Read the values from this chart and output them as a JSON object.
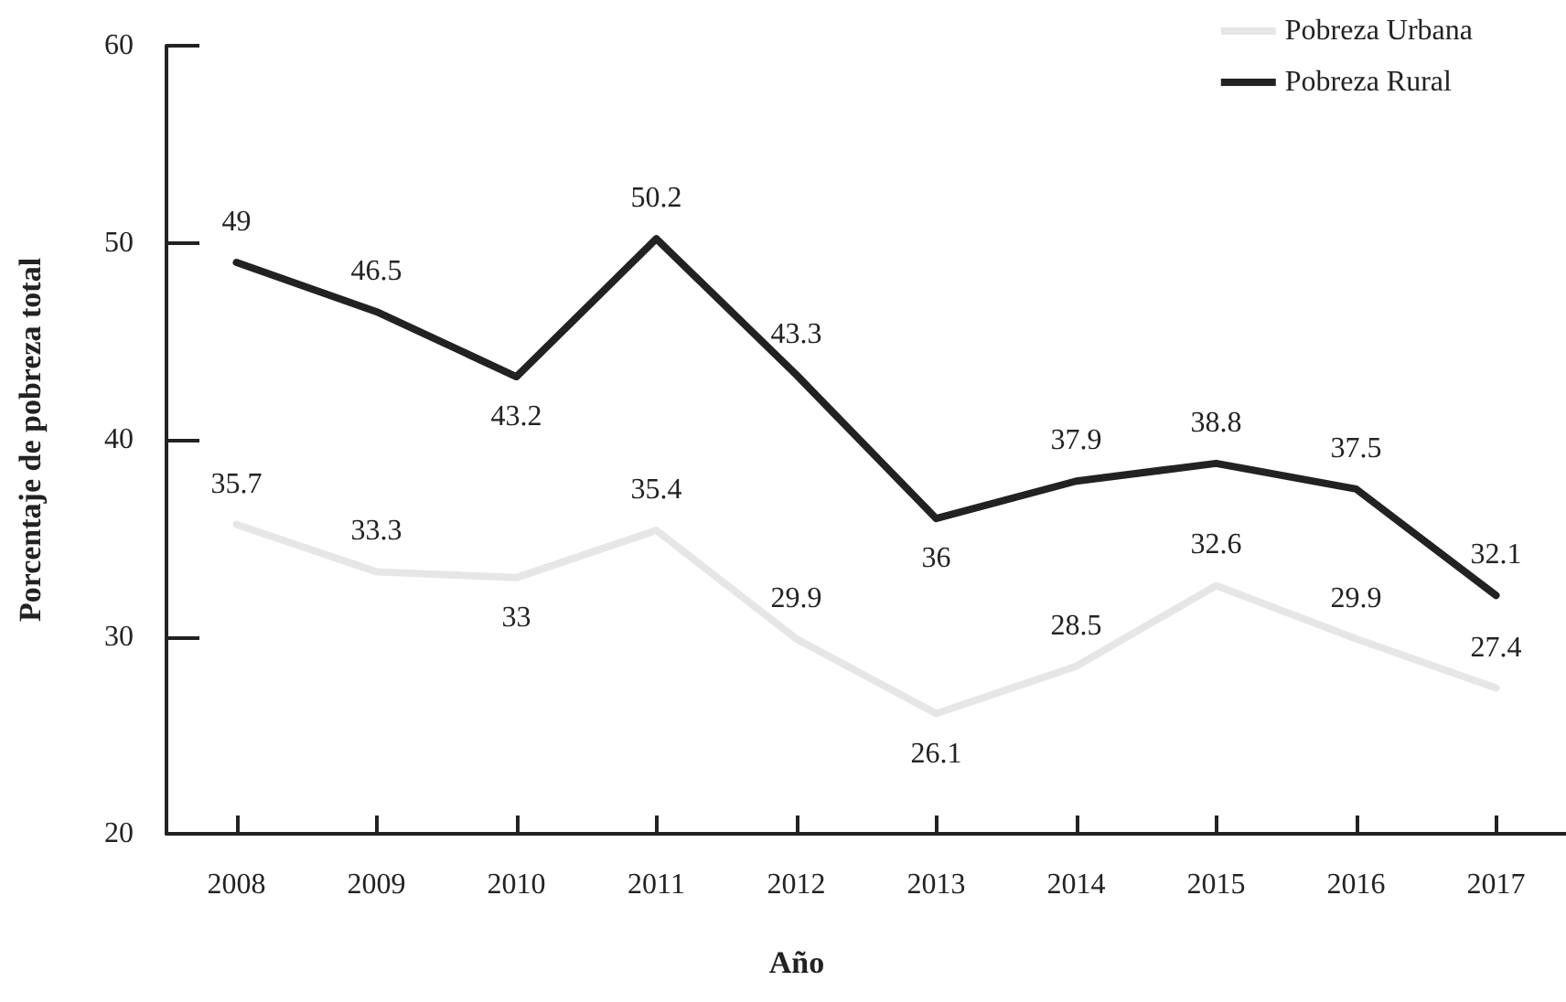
{
  "chart_data": {
    "type": "line",
    "xlabel": "Año",
    "ylabel": "Porcentaje de pobreza total",
    "categories": [
      "2008",
      "2009",
      "2010",
      "2011",
      "2012",
      "2013",
      "2014",
      "2015",
      "2016",
      "2017"
    ],
    "series": [
      {
        "name": "Pobreza Urbana",
        "color": "#e6e6e6",
        "values": [
          35.7,
          33.3,
          33,
          35.4,
          29.9,
          26.1,
          28.5,
          32.6,
          29.9,
          27.4
        ]
      },
      {
        "name": "Pobreza Rural",
        "color": "#222222",
        "values": [
          49,
          46.5,
          43.2,
          50.2,
          43.3,
          36,
          37.9,
          38.8,
          37.5,
          32.1
        ]
      }
    ],
    "ylim": [
      20,
      60
    ],
    "yticks": [
      20,
      30,
      40,
      50,
      60
    ],
    "grid": false,
    "legend": "top right",
    "marker": "none",
    "line_style": "solid",
    "data_labels": true
  }
}
